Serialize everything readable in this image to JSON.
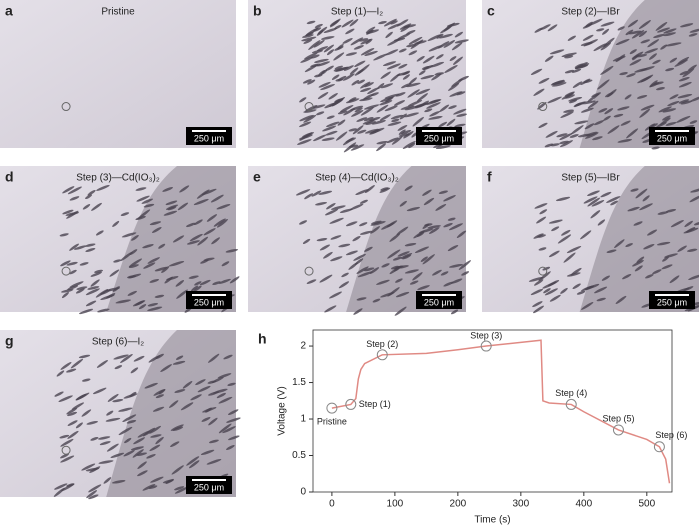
{
  "panels": [
    {
      "letter": "a",
      "label": "Pristine",
      "scale_bar": "250 μm"
    },
    {
      "letter": "b",
      "label": "Step (1)—I₂",
      "scale_bar": "250 μm"
    },
    {
      "letter": "c",
      "label": "Step (2)—IBr",
      "scale_bar": "250 μm"
    },
    {
      "letter": "d",
      "label": "Step (3)—Cd(IO₃)₂",
      "scale_bar": "250 μm"
    },
    {
      "letter": "e",
      "label": "Step (4)—Cd(IO₃)₂",
      "scale_bar": "250 μm"
    },
    {
      "letter": "f",
      "label": "Step (5)—IBr",
      "scale_bar": "250 μm"
    },
    {
      "letter": "g",
      "label": "Step (6)—I₂",
      "scale_bar": "250 μm"
    }
  ],
  "chart_data": {
    "type": "line",
    "letter": "h",
    "x_label": "Time (s)",
    "y_label": "Voltage (V)",
    "xlim": [
      -30,
      540
    ],
    "ylim": [
      0,
      2.22
    ],
    "xticks": [
      0,
      100,
      200,
      300,
      400,
      500
    ],
    "yticks": [
      0,
      0.5,
      1.0,
      1.5,
      2.0
    ],
    "series": [
      {
        "color": "#e08a84",
        "x": [
          0,
          30,
          38,
          42,
          46,
          52,
          80,
          150,
          200,
          245,
          300,
          332,
          335,
          345,
          380,
          400,
          455,
          500,
          520,
          530,
          536
        ],
        "values": [
          1.15,
          1.2,
          1.28,
          1.55,
          1.68,
          1.76,
          1.88,
          1.9,
          1.95,
          2.0,
          2.05,
          2.08,
          1.25,
          1.22,
          1.2,
          1.1,
          0.85,
          0.72,
          0.62,
          0.45,
          0.12
        ]
      }
    ],
    "annotations": [
      {
        "text": "Pristine",
        "x": 0,
        "y": 1.15
      },
      {
        "text": "Step (1)",
        "x": 30,
        "y": 1.2
      },
      {
        "text": "Step (2)",
        "x": 80,
        "y": 1.88
      },
      {
        "text": "Step (3)",
        "x": 245,
        "y": 2.0
      },
      {
        "text": "Step (4)",
        "x": 380,
        "y": 1.2
      },
      {
        "text": "Step (5)",
        "x": 455,
        "y": 0.85
      },
      {
        "text": "Step (6)",
        "x": 520,
        "y": 0.62
      }
    ]
  }
}
